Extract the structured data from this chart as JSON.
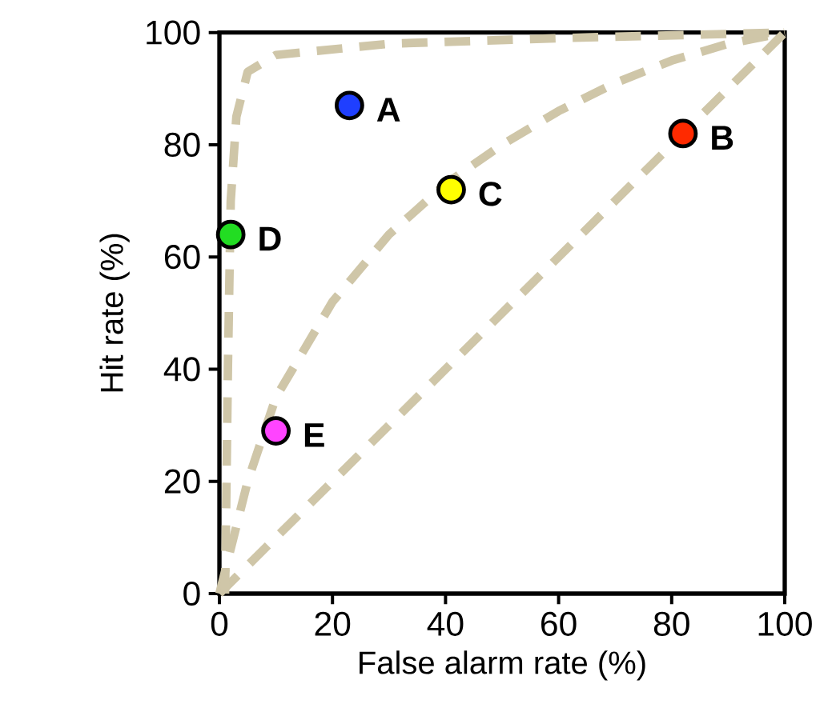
{
  "chart_data": {
    "type": "scatter",
    "xlabel": "False alarm rate (%)",
    "ylabel": "Hit rate (%)",
    "xlim": [
      0,
      100
    ],
    "ylim": [
      0,
      100
    ],
    "xticks": [
      0,
      20,
      40,
      60,
      80,
      100
    ],
    "yticks": [
      0,
      20,
      40,
      60,
      80,
      100
    ],
    "grid": false,
    "legend": false,
    "series": [
      {
        "type": "line",
        "color": "#cfc6a8",
        "line_style": "dashed",
        "x": [
          0,
          100
        ],
        "values": [
          0,
          100
        ]
      },
      {
        "type": "line",
        "color": "#cfc6a8",
        "line_style": "dashed",
        "x": [
          0,
          5,
          10,
          20,
          30,
          40,
          50,
          60,
          70,
          80,
          90,
          100
        ],
        "values": [
          0,
          20,
          35,
          52,
          64,
          73,
          80,
          86,
          91,
          95,
          98,
          100
        ]
      },
      {
        "type": "line",
        "color": "#cfc6a8",
        "line_style": "dashed",
        "x": [
          1,
          1.5,
          2,
          3,
          5,
          10,
          30,
          60,
          100
        ],
        "values": [
          0,
          40,
          70,
          85,
          93,
          96,
          98,
          99,
          100
        ]
      },
      {
        "name": "A",
        "color": "#1f3fff",
        "marker": "circle",
        "x": [
          23
        ],
        "values": [
          87
        ]
      },
      {
        "name": "B",
        "color": "#ff2a00",
        "marker": "circle",
        "x": [
          82
        ],
        "values": [
          82
        ]
      },
      {
        "name": "C",
        "color": "#ffff00",
        "marker": "circle",
        "x": [
          41
        ],
        "values": [
          72
        ]
      },
      {
        "name": "D",
        "color": "#22dd22",
        "marker": "circle",
        "x": [
          2
        ],
        "values": [
          64
        ]
      },
      {
        "name": "E",
        "color": "#ff44ff",
        "marker": "circle",
        "x": [
          10
        ],
        "values": [
          29
        ]
      }
    ]
  }
}
